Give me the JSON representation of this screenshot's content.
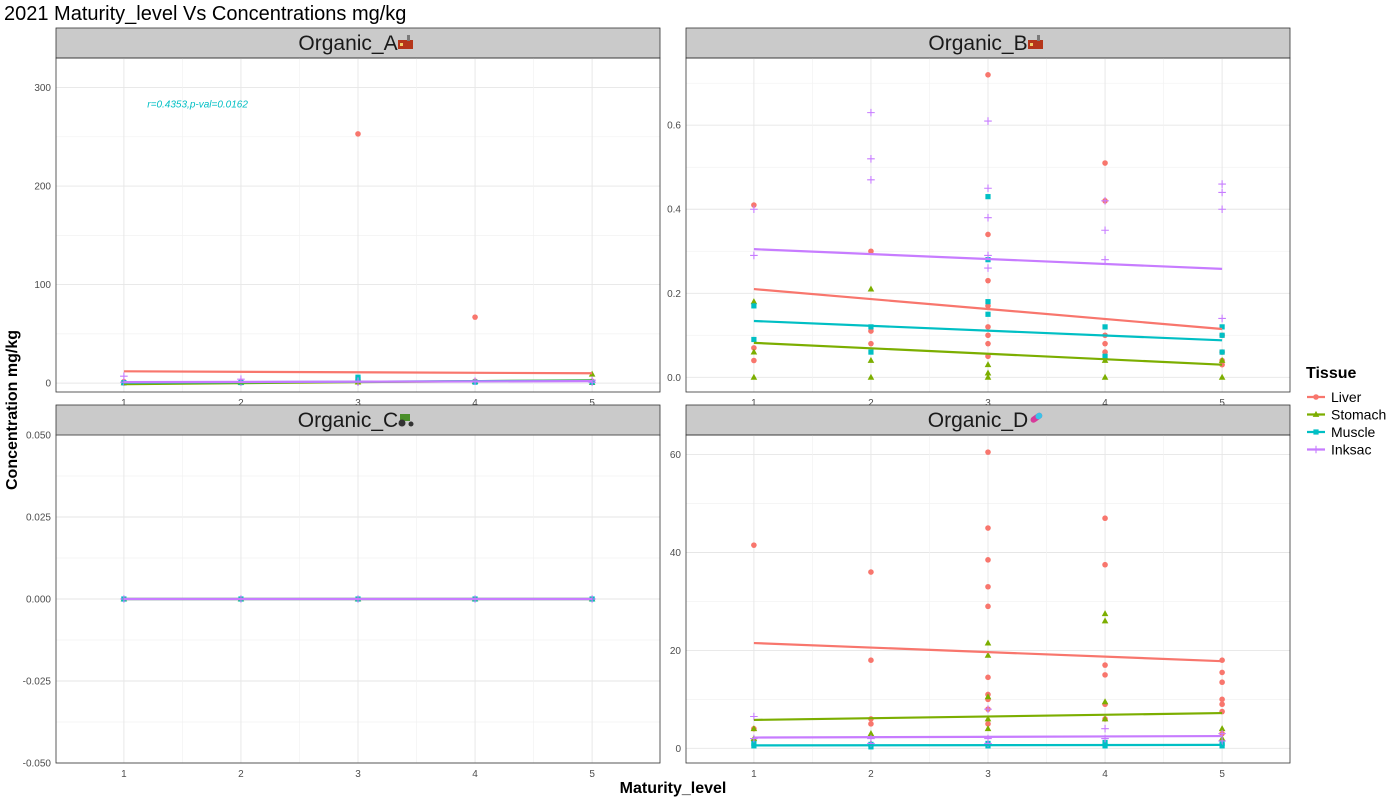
{
  "chart_data": {
    "type": "scatter",
    "title": "2021 Maturity_level Vs Concentrations mg/kg",
    "xlabel": "Maturity_level",
    "ylabel": "Concentration mg/kg",
    "legend": {
      "title": "Tissue",
      "placement": "right",
      "entries": [
        {
          "name": "Liver",
          "color": "#f8766d",
          "shape": "circle"
        },
        {
          "name": "Stomach",
          "color": "#7cae00",
          "shape": "triangle"
        },
        {
          "name": "Muscle",
          "color": "#00bfc4",
          "shape": "square"
        },
        {
          "name": "Inksac",
          "color": "#c77cff",
          "shape": "plus"
        }
      ]
    },
    "grid": true,
    "panels": [
      {
        "title": "Organic_A",
        "icon": "factory-icon",
        "xlim": [
          0.42,
          5.58
        ],
        "xticks": [
          1,
          2,
          3,
          4,
          5
        ],
        "ylim": [
          -9,
          330
        ],
        "yticks": [
          0,
          100,
          200,
          300
        ],
        "ytick_labels": [
          "0",
          "100",
          "200",
          "300"
        ],
        "annotation": {
          "text": "r=0.4353,p-val=0.0162",
          "x": 1.2,
          "y": 280,
          "color": "#00bfc4"
        },
        "points": {
          "Liver": [
            [
              1,
              0.5
            ],
            [
              1,
              1.5
            ],
            [
              2,
              0.8
            ],
            [
              2,
              1.2
            ],
            [
              3,
              253
            ],
            [
              3,
              3
            ],
            [
              3,
              1
            ],
            [
              4,
              67
            ],
            [
              4,
              2
            ],
            [
              5,
              1
            ],
            [
              5,
              2
            ]
          ],
          "Stomach": [
            [
              1,
              0.3
            ],
            [
              2,
              0.5
            ],
            [
              3,
              1
            ],
            [
              4,
              1.5
            ],
            [
              5,
              9
            ],
            [
              5,
              0.5
            ]
          ],
          "Muscle": [
            [
              1,
              0.4
            ],
            [
              2,
              0.6
            ],
            [
              3,
              6
            ],
            [
              3,
              4
            ],
            [
              4,
              1
            ],
            [
              5,
              1
            ]
          ],
          "Inksac": [
            [
              1,
              7
            ],
            [
              1,
              1
            ],
            [
              2,
              4
            ],
            [
              2,
              1
            ],
            [
              3,
              1
            ],
            [
              3,
              2
            ],
            [
              4,
              2
            ],
            [
              5,
              3
            ],
            [
              5,
              1
            ]
          ]
        },
        "lines": {
          "Liver": [
            [
              1,
              12
            ],
            [
              5,
              10
            ]
          ],
          "Stomach": [
            [
              1,
              -1
            ],
            [
              5,
              3
            ]
          ],
          "Muscle": [
            [
              1,
              0.5
            ],
            [
              5,
              2.5
            ]
          ],
          "Inksac": [
            [
              1,
              1
            ],
            [
              5,
              2
            ]
          ]
        }
      },
      {
        "title": "Organic_B",
        "icon": "factory-icon",
        "xlim": [
          0.42,
          5.58
        ],
        "xticks": [
          1,
          2,
          3,
          4,
          5
        ],
        "ylim": [
          -0.035,
          0.76
        ],
        "yticks": [
          0,
          0.2,
          0.4,
          0.6
        ],
        "ytick_labels": [
          "0.0",
          "0.2",
          "0.4",
          "0.6"
        ],
        "points": {
          "Liver": [
            [
              1,
              0.41
            ],
            [
              1,
              0.04
            ],
            [
              1,
              0.07
            ],
            [
              2,
              0.3
            ],
            [
              2,
              0.11
            ],
            [
              2,
              0.08
            ],
            [
              3,
              0.72
            ],
            [
              3,
              0.34
            ],
            [
              3,
              0.23
            ],
            [
              3,
              0.17
            ],
            [
              3,
              0.12
            ],
            [
              3,
              0.1
            ],
            [
              3,
              0.08
            ],
            [
              3,
              0.05
            ],
            [
              4,
              0.51
            ],
            [
              4,
              0.42
            ],
            [
              4,
              0.1
            ],
            [
              4,
              0.08
            ],
            [
              4,
              0.06
            ],
            [
              5,
              0.06
            ],
            [
              5,
              0.04
            ],
            [
              5,
              0.03
            ],
            [
              5,
              0.1
            ]
          ],
          "Stomach": [
            [
              1,
              0.18
            ],
            [
              1,
              0.06
            ],
            [
              1,
              0.0
            ],
            [
              2,
              0.21
            ],
            [
              2,
              0.04
            ],
            [
              2,
              0.0
            ],
            [
              3,
              0.03
            ],
            [
              3,
              0.01
            ],
            [
              3,
              0.0
            ],
            [
              4,
              0.0
            ],
            [
              4,
              0.04
            ],
            [
              5,
              0.0
            ],
            [
              5,
              0.04
            ]
          ],
          "Muscle": [
            [
              1,
              0.09
            ],
            [
              1,
              0.17
            ],
            [
              2,
              0.12
            ],
            [
              2,
              0.06
            ],
            [
              3,
              0.43
            ],
            [
              3,
              0.28
            ],
            [
              3,
              0.15
            ],
            [
              3,
              0.18
            ],
            [
              4,
              0.12
            ],
            [
              4,
              0.05
            ],
            [
              5,
              0.12
            ],
            [
              5,
              0.1
            ],
            [
              5,
              0.06
            ]
          ],
          "Inksac": [
            [
              1,
              0.4
            ],
            [
              1,
              0.29
            ],
            [
              2,
              0.63
            ],
            [
              2,
              0.52
            ],
            [
              2,
              0.47
            ],
            [
              3,
              0.61
            ],
            [
              3,
              0.45
            ],
            [
              3,
              0.38
            ],
            [
              3,
              0.29
            ],
            [
              3,
              0.26
            ],
            [
              4,
              0.42
            ],
            [
              4,
              0.35
            ],
            [
              4,
              0.28
            ],
            [
              5,
              0.46
            ],
            [
              5,
              0.44
            ],
            [
              5,
              0.4
            ],
            [
              5,
              0.14
            ]
          ]
        },
        "lines": {
          "Liver": [
            [
              1,
              0.21
            ],
            [
              5,
              0.115
            ]
          ],
          "Stomach": [
            [
              1,
              0.082
            ],
            [
              5,
              0.03
            ]
          ],
          "Muscle": [
            [
              1,
              0.134
            ],
            [
              5,
              0.088
            ]
          ],
          "Inksac": [
            [
              1,
              0.305
            ],
            [
              5,
              0.258
            ]
          ]
        }
      },
      {
        "title": "Organic_C",
        "icon": "tractor-icon",
        "xlim": [
          0.42,
          5.58
        ],
        "xticks": [
          1,
          2,
          3,
          4,
          5
        ],
        "ylim": [
          -0.05,
          0.05
        ],
        "yticks": [
          -0.05,
          -0.025,
          0,
          0.025,
          0.05
        ],
        "ytick_labels": [
          "-0.050",
          "-0.025",
          "0.000",
          "0.025",
          "0.050"
        ],
        "points": {
          "Liver": [
            [
              1,
              0
            ],
            [
              2,
              0
            ],
            [
              3,
              0
            ],
            [
              4,
              0
            ],
            [
              5,
              0
            ]
          ],
          "Stomach": [
            [
              1,
              0
            ],
            [
              2,
              0
            ],
            [
              3,
              0
            ],
            [
              4,
              0
            ],
            [
              5,
              0
            ]
          ],
          "Muscle": [
            [
              1,
              0
            ],
            [
              2,
              0
            ],
            [
              3,
              0
            ],
            [
              4,
              0
            ],
            [
              5,
              0
            ]
          ],
          "Inksac": [
            [
              1,
              0
            ],
            [
              2,
              0
            ],
            [
              3,
              0
            ],
            [
              4,
              0
            ],
            [
              5,
              0
            ]
          ]
        },
        "lines": {
          "Liver": [
            [
              1,
              0
            ],
            [
              5,
              0
            ]
          ],
          "Stomach": [
            [
              1,
              0
            ],
            [
              5,
              0
            ]
          ],
          "Muscle": [
            [
              1,
              0
            ],
            [
              5,
              0
            ]
          ],
          "Inksac": [
            [
              1,
              0
            ],
            [
              5,
              0
            ]
          ]
        }
      },
      {
        "title": "Organic_D",
        "icon": "pill-icon",
        "xlim": [
          0.42,
          5.58
        ],
        "xticks": [
          1,
          2,
          3,
          4,
          5
        ],
        "ylim": [
          -3,
          64
        ],
        "yticks": [
          0,
          20,
          40,
          60
        ],
        "ytick_labels": [
          "0",
          "20",
          "40",
          "60"
        ],
        "points": {
          "Liver": [
            [
              1,
              41.5
            ],
            [
              1,
              4
            ],
            [
              1,
              1.5
            ],
            [
              2,
              36
            ],
            [
              2,
              18
            ],
            [
              2,
              6
            ],
            [
              2,
              5
            ],
            [
              3,
              60.5
            ],
            [
              3,
              45
            ],
            [
              3,
              38.5
            ],
            [
              3,
              33
            ],
            [
              3,
              29
            ],
            [
              3,
              14.5
            ],
            [
              3,
              11
            ],
            [
              3,
              10
            ],
            [
              3,
              8
            ],
            [
              3,
              5
            ],
            [
              4,
              47
            ],
            [
              4,
              37.5
            ],
            [
              4,
              17
            ],
            [
              4,
              15
            ],
            [
              4,
              9
            ],
            [
              4,
              6
            ],
            [
              5,
              18
            ],
            [
              5,
              15.5
            ],
            [
              5,
              13.5
            ],
            [
              5,
              10
            ],
            [
              5,
              9
            ],
            [
              5,
              7.5
            ],
            [
              5,
              3
            ]
          ],
          "Stomach": [
            [
              1,
              4
            ],
            [
              1,
              2
            ],
            [
              2,
              3
            ],
            [
              2,
              2.5
            ],
            [
              2,
              1
            ],
            [
              3,
              21.5
            ],
            [
              3,
              19
            ],
            [
              3,
              10.5
            ],
            [
              3,
              6
            ],
            [
              3,
              4
            ],
            [
              4,
              27.5
            ],
            [
              4,
              26
            ],
            [
              4,
              9.5
            ],
            [
              4,
              6
            ],
            [
              5,
              4
            ],
            [
              5,
              2
            ]
          ],
          "Muscle": [
            [
              1,
              0.5
            ],
            [
              1,
              1
            ],
            [
              2,
              0.3
            ],
            [
              2,
              0.8
            ],
            [
              3,
              0.5
            ],
            [
              3,
              1
            ],
            [
              4,
              0.5
            ],
            [
              4,
              1.2
            ],
            [
              5,
              0.5
            ],
            [
              5,
              1
            ]
          ],
          "Inksac": [
            [
              1,
              6.5
            ],
            [
              1,
              2
            ],
            [
              2,
              1
            ],
            [
              2,
              2
            ],
            [
              3,
              8
            ],
            [
              3,
              2
            ],
            [
              3,
              1
            ],
            [
              4,
              4
            ],
            [
              4,
              2
            ],
            [
              5,
              3
            ],
            [
              5,
              1.5
            ]
          ]
        },
        "lines": {
          "Liver": [
            [
              1,
              21.5
            ],
            [
              5,
              17.8
            ]
          ],
          "Stomach": [
            [
              1,
              5.8
            ],
            [
              5,
              7.2
            ]
          ],
          "Muscle": [
            [
              1,
              0.6
            ],
            [
              5,
              0.7
            ]
          ],
          "Inksac": [
            [
              1,
              2.2
            ],
            [
              5,
              2.5
            ]
          ]
        }
      }
    ]
  }
}
